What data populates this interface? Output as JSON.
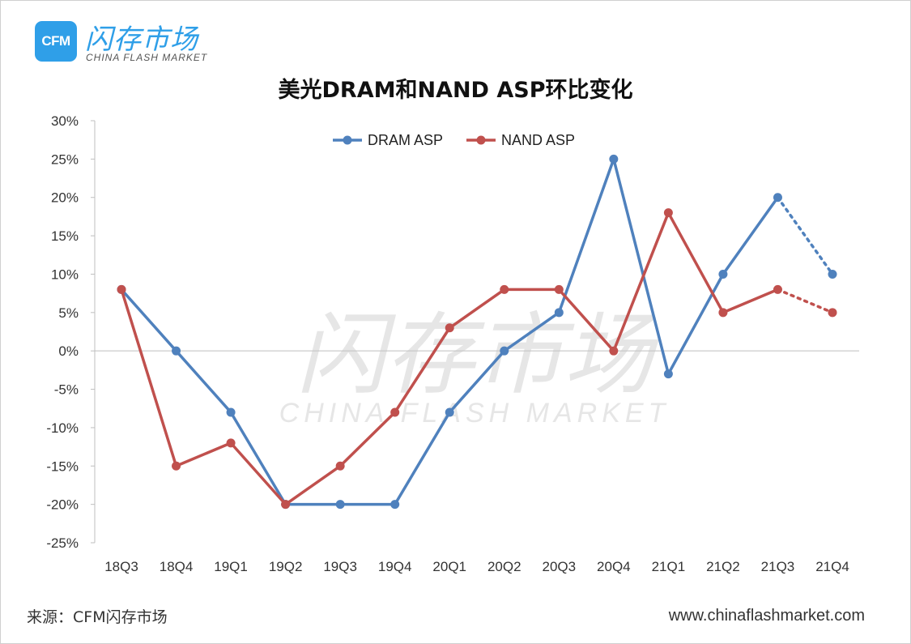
{
  "brand": {
    "logo_badge": "CFM",
    "logo_name": "闪存市场",
    "logo_sub": "CHINA FLASH MARKET",
    "watermark_cn": "闪存市场",
    "watermark_en": "CHINA FLASH MARKET",
    "color": "#2f9fe8"
  },
  "footer": {
    "source": "来源：CFM闪存市场",
    "site": "www.chinaflashmarket.com"
  },
  "chart_data": {
    "type": "line",
    "title": "美光DRAM和NAND ASP环比变化",
    "categories": [
      "18Q3",
      "18Q4",
      "19Q1",
      "19Q2",
      "19Q3",
      "19Q4",
      "20Q1",
      "20Q2",
      "20Q3",
      "20Q4",
      "21Q1",
      "21Q2",
      "21Q3",
      "21Q4"
    ],
    "ylim": [
      -25,
      30
    ],
    "yticks": [
      30,
      25,
      20,
      15,
      10,
      5,
      0,
      -5,
      -10,
      -15,
      -20,
      -25
    ],
    "ytick_labels": [
      "30%",
      "25%",
      "20%",
      "15%",
      "10%",
      "5%",
      "0%",
      "-5%",
      "-10%",
      "-15%",
      "-20%",
      "-25%"
    ],
    "legend_position": "top-center",
    "grid": false,
    "series": [
      {
        "name": "DRAM ASP",
        "color": "#4f81bd",
        "values": [
          8,
          0,
          -8,
          -20,
          -20,
          -20,
          -8,
          0,
          5,
          25,
          -3,
          10,
          20,
          10
        ],
        "dashed_from_index": 12
      },
      {
        "name": "NAND ASP",
        "color": "#c0504d",
        "values": [
          8,
          -15,
          -12,
          -20,
          -15,
          -8,
          3,
          8,
          8,
          0,
          18,
          5,
          8,
          5
        ],
        "dashed_from_index": 12
      }
    ]
  }
}
